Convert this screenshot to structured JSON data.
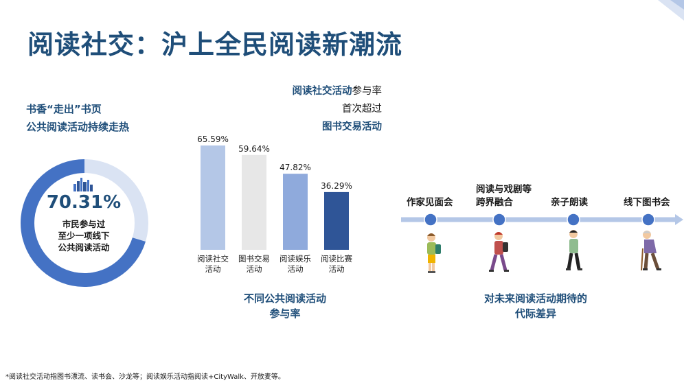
{
  "page": {
    "title": "阅读社交：沪上全民阅读新潮流",
    "footnote": "*阅读社交活动指图书漂流、读书会、沙龙等；阅读娱乐活动指阅读+CityWalk、开放麦等。"
  },
  "left": {
    "heading_line1": "书香“走出”书页",
    "heading_line2": "公共阅读活动持续走热",
    "donut": {
      "value": 70.31,
      "value_label": "70.31%",
      "text_line1": "市民参与过",
      "text_line2": "至少一项线下",
      "text_line3": "公共阅读活动",
      "color_fill": "#4472c4",
      "color_rest": "#dae3f3"
    }
  },
  "highlight": {
    "line1_blue": "阅读社交活动",
    "line1_rest": "参与率",
    "line2": "首次超过",
    "line3_blue": "图书交易活动"
  },
  "chart_data": {
    "type": "bar",
    "categories": [
      "阅读社交活动",
      "图书交易活动",
      "阅读娱乐活动",
      "阅读比赛活动"
    ],
    "category_lines": [
      [
        "阅读社交",
        "活动"
      ],
      [
        "图书交易",
        "活动"
      ],
      [
        "阅读娱乐",
        "活动"
      ],
      [
        "阅读比赛",
        "活动"
      ]
    ],
    "values": [
      65.59,
      59.64,
      47.82,
      36.29
    ],
    "data_labels": [
      "65.59%",
      "59.64%",
      "47.82%",
      "36.29%"
    ],
    "colors": [
      "#b4c7e7",
      "#e7e7e7",
      "#8faadc",
      "#2f5597"
    ],
    "ylim": [
      0,
      70
    ],
    "title_line1": "不同公共阅读活动",
    "title_line2": "参与率"
  },
  "timeline": {
    "items": [
      {
        "line1": "作家见面会",
        "line2": ""
      },
      {
        "line1": "阅读与戏剧等",
        "line2": "跨界融合"
      },
      {
        "line1": "亲子朗读",
        "line2": ""
      },
      {
        "line1": "线下图书会",
        "line2": ""
      }
    ],
    "caption_line1": "对未来阅读活动期待的",
    "caption_line2": "代际差异",
    "line_color": "#4472c4",
    "dot_color": "#4472c4"
  }
}
